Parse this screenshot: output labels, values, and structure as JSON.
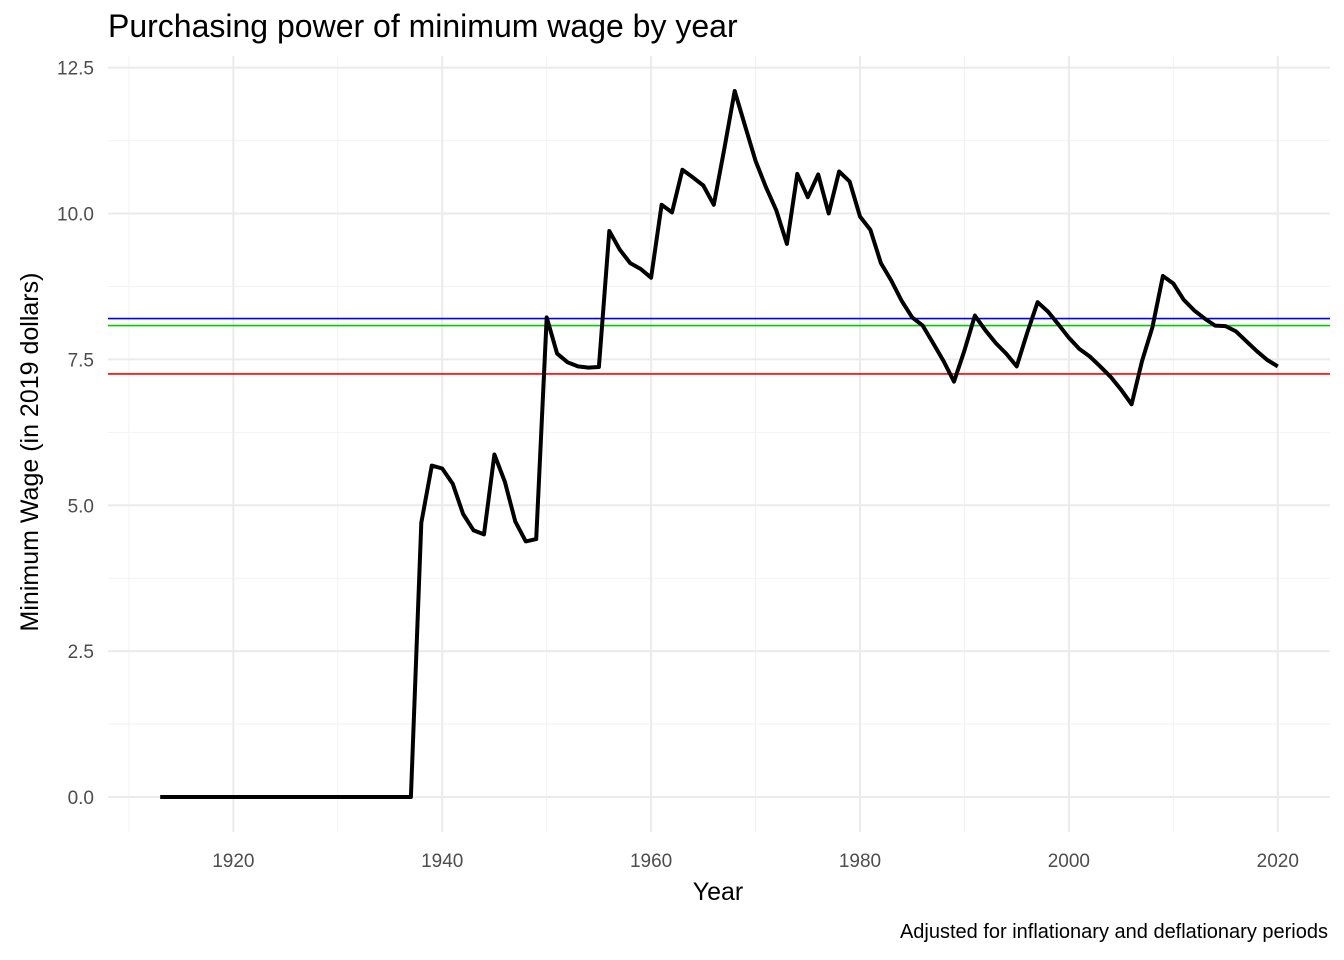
{
  "chart_data": {
    "type": "line",
    "title": "Purchasing power of minimum wage by year",
    "caption": "Adjusted for inflationary and deflationary periods",
    "xlabel": "Year",
    "ylabel": "Minimum Wage (in 2019 dollars)",
    "xlim": [
      1908,
      2025
    ],
    "ylim": [
      -0.6,
      12.7
    ],
    "x_ticks": [
      1920,
      1940,
      1960,
      1980,
      2000,
      2020
    ],
    "y_ticks": [
      0.0,
      2.5,
      5.0,
      7.5,
      10.0,
      12.5
    ],
    "x_tick_labels": [
      "1920",
      "1940",
      "1960",
      "1980",
      "2000",
      "2020"
    ],
    "y_tick_labels": [
      "0.0",
      "2.5",
      "5.0",
      "7.5",
      "10.0",
      "12.5"
    ],
    "grid": true,
    "series": [
      {
        "color": "#000000",
        "x": [
          1913,
          1914,
          1915,
          1916,
          1917,
          1918,
          1919,
          1920,
          1921,
          1922,
          1923,
          1924,
          1925,
          1926,
          1927,
          1928,
          1929,
          1930,
          1931,
          1932,
          1933,
          1934,
          1935,
          1936,
          1937,
          1938,
          1939,
          1940,
          1941,
          1942,
          1943,
          1944,
          1945,
          1946,
          1947,
          1948,
          1949,
          1950,
          1951,
          1952,
          1953,
          1954,
          1955,
          1956,
          1957,
          1958,
          1959,
          1960,
          1961,
          1962,
          1963,
          1964,
          1965,
          1966,
          1967,
          1968,
          1969,
          1970,
          1971,
          1972,
          1973,
          1974,
          1975,
          1976,
          1977,
          1978,
          1979,
          1980,
          1981,
          1982,
          1983,
          1984,
          1985,
          1986,
          1987,
          1988,
          1989,
          1990,
          1991,
          1992,
          1993,
          1994,
          1995,
          1996,
          1997,
          1998,
          1999,
          2000,
          2001,
          2002,
          2003,
          2004,
          2005,
          2006,
          2007,
          2008,
          2009,
          2010,
          2011,
          2012,
          2013,
          2014,
          2015,
          2016,
          2017,
          2018,
          2019,
          2020
        ],
        "y": [
          0,
          0,
          0,
          0,
          0,
          0,
          0,
          0,
          0,
          0,
          0,
          0,
          0,
          0,
          0,
          0,
          0,
          0,
          0,
          0,
          0,
          0,
          0,
          0,
          0,
          4.7,
          5.68,
          5.63,
          5.37,
          4.85,
          4.57,
          4.5,
          5.87,
          5.4,
          4.72,
          4.38,
          4.42,
          8.22,
          7.6,
          7.45,
          7.38,
          7.36,
          7.37,
          9.7,
          9.38,
          9.15,
          9.05,
          8.9,
          10.15,
          10.02,
          10.75,
          10.62,
          10.48,
          10.15,
          11.1,
          12.1,
          11.5,
          10.9,
          10.45,
          10.05,
          9.48,
          10.68,
          10.28,
          10.67,
          10.0,
          10.72,
          10.55,
          9.95,
          9.72,
          9.15,
          8.85,
          8.5,
          8.22,
          8.08,
          7.78,
          7.47,
          7.12,
          7.65,
          8.25,
          8.0,
          7.78,
          7.6,
          7.38,
          7.95,
          8.48,
          8.32,
          8.1,
          7.87,
          7.68,
          7.55,
          7.38,
          7.2,
          6.98,
          6.73,
          7.47,
          8.05,
          8.93,
          8.8,
          8.52,
          8.34,
          8.2,
          8.08,
          8.07,
          7.98,
          7.81,
          7.64,
          7.49,
          7.38
        ]
      }
    ],
    "reference_lines": [
      {
        "y": 8.2,
        "color": "#0000ff"
      },
      {
        "y": 8.08,
        "color": "#00cd00"
      },
      {
        "y": 7.25,
        "color": "#ff0000"
      }
    ]
  }
}
